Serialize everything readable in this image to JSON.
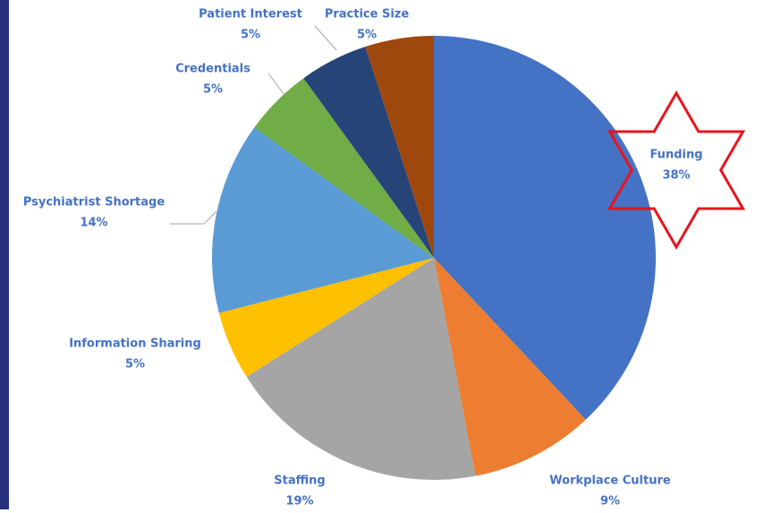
{
  "chart_data": {
    "type": "pie",
    "categories": [
      "Funding",
      "Workplace Culture",
      "Staffing",
      "Information Sharing",
      "Psychiatrist Shortage",
      "Credentials",
      "Patient Interest",
      "Practice Size"
    ],
    "values": [
      38,
      9,
      19,
      5,
      14,
      5,
      5,
      5
    ],
    "value_labels": [
      "38%",
      "9%",
      "19%",
      "5%",
      "14%",
      "5%",
      "5%",
      "5%"
    ],
    "colors": [
      "#4472c4",
      "#ed7d31",
      "#a5a5a5",
      "#ffc000",
      "#5b9bd5",
      "#70ad47",
      "#264478",
      "#9e480e"
    ]
  }
}
